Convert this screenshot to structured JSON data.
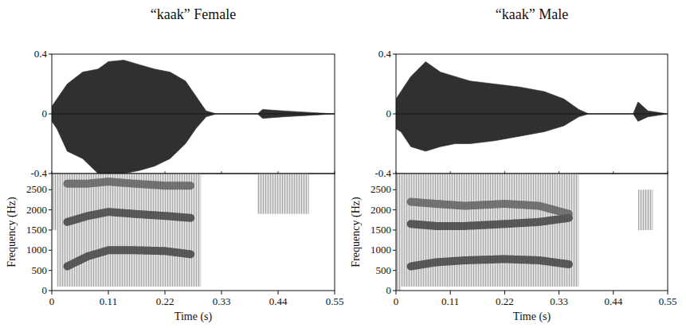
{
  "chart_data": [
    {
      "type": "area",
      "title": "“kaak” Female",
      "x": [
        0,
        0.01,
        0.03,
        0.06,
        0.09,
        0.11,
        0.14,
        0.17,
        0.2,
        0.23,
        0.26,
        0.28,
        0.3,
        0.32,
        0.4,
        0.41,
        0.45,
        0.5,
        0.55
      ],
      "values": [
        0.05,
        0.1,
        0.2,
        0.28,
        0.3,
        0.35,
        0.36,
        0.33,
        0.3,
        0.28,
        0.22,
        0.12,
        0.02,
        0,
        0,
        0.03,
        0.02,
        0.01,
        0
      ],
      "lower": [
        -0.05,
        -0.1,
        -0.25,
        -0.3,
        -0.4,
        -0.4,
        -0.4,
        -0.38,
        -0.35,
        -0.3,
        -0.2,
        -0.1,
        -0.02,
        0,
        0,
        -0.03,
        -0.02,
        -0.01,
        0
      ],
      "color": "#1a1a1a",
      "xlim": [
        0,
        0.55
      ],
      "xticks": [
        0,
        0.11,
        0.22,
        0.33,
        0.44,
        0.55
      ],
      "ylim": [
        -0.4,
        0.4
      ],
      "yticks": [
        0.4,
        0,
        -0.4
      ],
      "tick_labels": "y"
    },
    {
      "type": "line",
      "x_label": "Time (s)",
      "y_label": "Frequency (Hz)",
      "x": [
        0.03,
        0.07,
        0.11,
        0.16,
        0.22,
        0.27
      ],
      "series": [
        {
          "color": "#3a3a3a",
          "values": [
            600,
            850,
            1000,
            1000,
            980,
            900
          ]
        },
        {
          "color": "#3a3a3a",
          "values": [
            1700,
            1850,
            1950,
            1900,
            1850,
            1800
          ]
        },
        {
          "color": "#5a5a5a",
          "values": [
            2650,
            2650,
            2700,
            2650,
            2600,
            2600
          ]
        }
      ],
      "bands": [
        {
          "x": [
            0,
            0.01
          ],
          "y": [
            1500,
            2900
          ]
        },
        {
          "x": [
            0.01,
            0.29
          ],
          "y": [
            100,
            2900
          ]
        },
        {
          "x": [
            0.4,
            0.5
          ],
          "y": [
            1900,
            2900
          ]
        }
      ],
      "xlim": [
        0,
        0.55
      ],
      "xticks": [
        0,
        0.11,
        0.22,
        0.33,
        0.44,
        0.55
      ],
      "ylim": [
        0,
        2900
      ],
      "yticks": [
        0,
        500,
        1000,
        1500,
        2000,
        2500
      ]
    },
    {
      "type": "area",
      "title": "“kaak” Male",
      "x": [
        0,
        0.01,
        0.03,
        0.06,
        0.09,
        0.12,
        0.15,
        0.2,
        0.25,
        0.3,
        0.34,
        0.37,
        0.39,
        0.48,
        0.49,
        0.51,
        0.55
      ],
      "values": [
        0.1,
        0.15,
        0.25,
        0.35,
        0.28,
        0.25,
        0.22,
        0.2,
        0.18,
        0.15,
        0.1,
        0.03,
        0,
        0,
        0.08,
        0.02,
        0
      ],
      "lower": [
        -0.1,
        -0.12,
        -0.22,
        -0.25,
        -0.22,
        -0.2,
        -0.2,
        -0.18,
        -0.15,
        -0.12,
        -0.08,
        -0.02,
        0,
        0,
        -0.05,
        -0.02,
        0
      ],
      "color": "#1a1a1a",
      "xlim": [
        0,
        0.55
      ],
      "xticks": [
        0,
        0.11,
        0.22,
        0.33,
        0.44,
        0.55
      ],
      "ylim": [
        -0.4,
        0.4
      ],
      "yticks": [
        0.4,
        0,
        -0.4
      ],
      "tick_labels": "y"
    },
    {
      "type": "line",
      "x_label": "Time (s)",
      "y_label": "Frequency (Hz)",
      "x": [
        0.03,
        0.08,
        0.14,
        0.22,
        0.29,
        0.35
      ],
      "series": [
        {
          "color": "#3a3a3a",
          "values": [
            600,
            700,
            750,
            780,
            750,
            650
          ]
        },
        {
          "color": "#3a3a3a",
          "values": [
            1650,
            1600,
            1600,
            1650,
            1700,
            1800
          ]
        },
        {
          "color": "#5a5a5a",
          "values": [
            2200,
            2150,
            2100,
            2150,
            2100,
            1900
          ]
        }
      ],
      "bands": [
        {
          "x": [
            0,
            0.01
          ],
          "y": [
            0,
            2900
          ]
        },
        {
          "x": [
            0.01,
            0.37
          ],
          "y": [
            100,
            2900
          ]
        },
        {
          "x": [
            0.49,
            0.52
          ],
          "y": [
            1500,
            2500
          ]
        }
      ],
      "xlim": [
        0,
        0.55
      ],
      "xticks": [
        0,
        0.11,
        0.22,
        0.33,
        0.44,
        0.55
      ],
      "ylim": [
        0,
        2900
      ],
      "yticks": [
        0,
        500,
        1000,
        1500,
        2000,
        2500
      ]
    }
  ]
}
